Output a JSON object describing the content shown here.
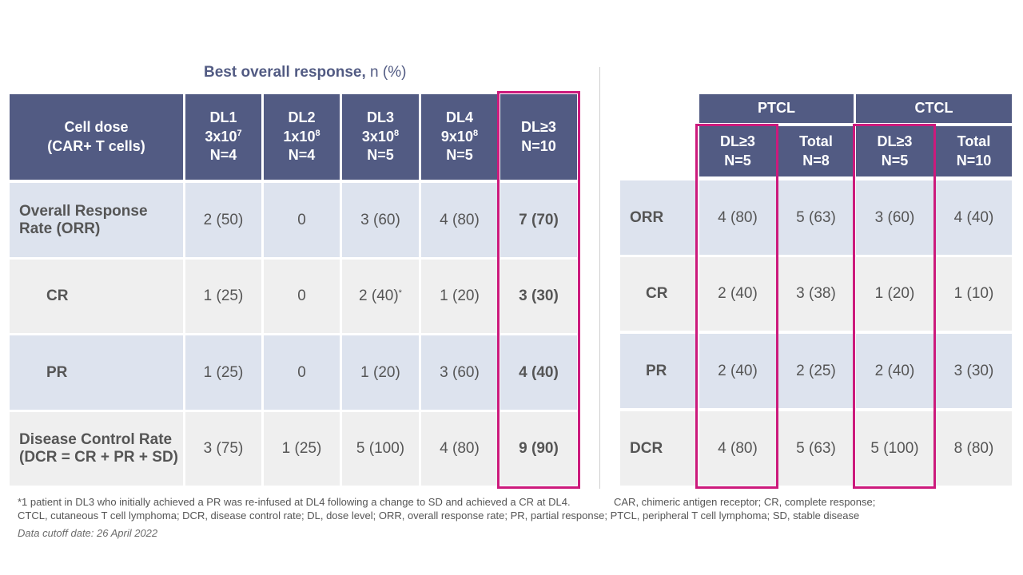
{
  "left": {
    "title_bold": "Best overall response,",
    "title_rest": " n (%)",
    "header_label": [
      "Cell dose",
      "(CAR+ T cells)"
    ],
    "columns": [
      {
        "label": "DL1",
        "dose_base": "3x10",
        "dose_exp": "7",
        "n": "N=4"
      },
      {
        "label": "DL2",
        "dose_base": "1x10",
        "dose_exp": "8",
        "n": "N=4"
      },
      {
        "label": "DL3",
        "dose_base": "3x10",
        "dose_exp": "8",
        "n": "N=5"
      },
      {
        "label": "DL4",
        "dose_base": "9x10",
        "dose_exp": "8",
        "n": "N=5"
      },
      {
        "label": "DL≥3",
        "n": "N=10"
      }
    ],
    "rows": [
      {
        "label": [
          "Overall Response",
          "Rate (ORR)"
        ],
        "values": [
          "2 (50)",
          "0",
          "3 (60)",
          "4 (80)",
          "7 (70)"
        ]
      },
      {
        "label": [
          "CR"
        ],
        "values": [
          "1 (25)",
          "0",
          "2 (40)",
          "1 (20)",
          "3 (30)"
        ],
        "footnote_marker": "*"
      },
      {
        "label": [
          "PR"
        ],
        "values": [
          "1 (25)",
          "0",
          "1 (20)",
          "3 (60)",
          "4 (40)"
        ]
      },
      {
        "label": [
          "Disease Control Rate",
          "(DCR = CR + PR + SD)"
        ],
        "values": [
          "3 (75)",
          "1 (25)",
          "5 (100)",
          "4 (80)",
          "9 (90)"
        ]
      }
    ]
  },
  "right": {
    "groups": [
      "PTCL",
      "CTCL"
    ],
    "columns": [
      {
        "label": "DL≥3",
        "n": "N=5"
      },
      {
        "label": "Total",
        "n": "N=8"
      },
      {
        "label": "DL≥3",
        "n": "N=5"
      },
      {
        "label": "Total",
        "n": "N=10"
      }
    ],
    "rows": [
      {
        "label": "ORR",
        "values": [
          "4 (80)",
          "5 (63)",
          "3 (60)",
          "4 (40)"
        ]
      },
      {
        "label": "CR",
        "values": [
          "2 (40)",
          "3 (38)",
          "1 (20)",
          "1 (10)"
        ]
      },
      {
        "label": "PR",
        "values": [
          "2 (40)",
          "2 (25)",
          "2 (40)",
          "3 (30)"
        ]
      },
      {
        "label": "DCR",
        "values": [
          "4 (80)",
          "5 (63)",
          "5 (100)",
          "8 (80)"
        ]
      }
    ]
  },
  "footnotes": {
    "line1a": "*1 patient in DL3 who initially achieved a PR was re-infused at DL4 following a change to SD and achieved a CR at DL4.",
    "line1b": "CAR, chimeric antigen receptor; CR, complete response;",
    "line2": "CTCL, cutaneous T cell lymphoma; DCR, disease control rate; DL, dose level; ORR, overall response rate; PR, partial response; PTCL, peripheral T cell lymphoma; SD, stable disease",
    "cutoff": "Data cutoff date: 26 April 2022"
  },
  "colors": {
    "header": "#525b83",
    "row_light_blue": "#dde3ee",
    "row_light_gray": "#efefef",
    "highlight": "#cc1a7c",
    "text": "#555555"
  }
}
